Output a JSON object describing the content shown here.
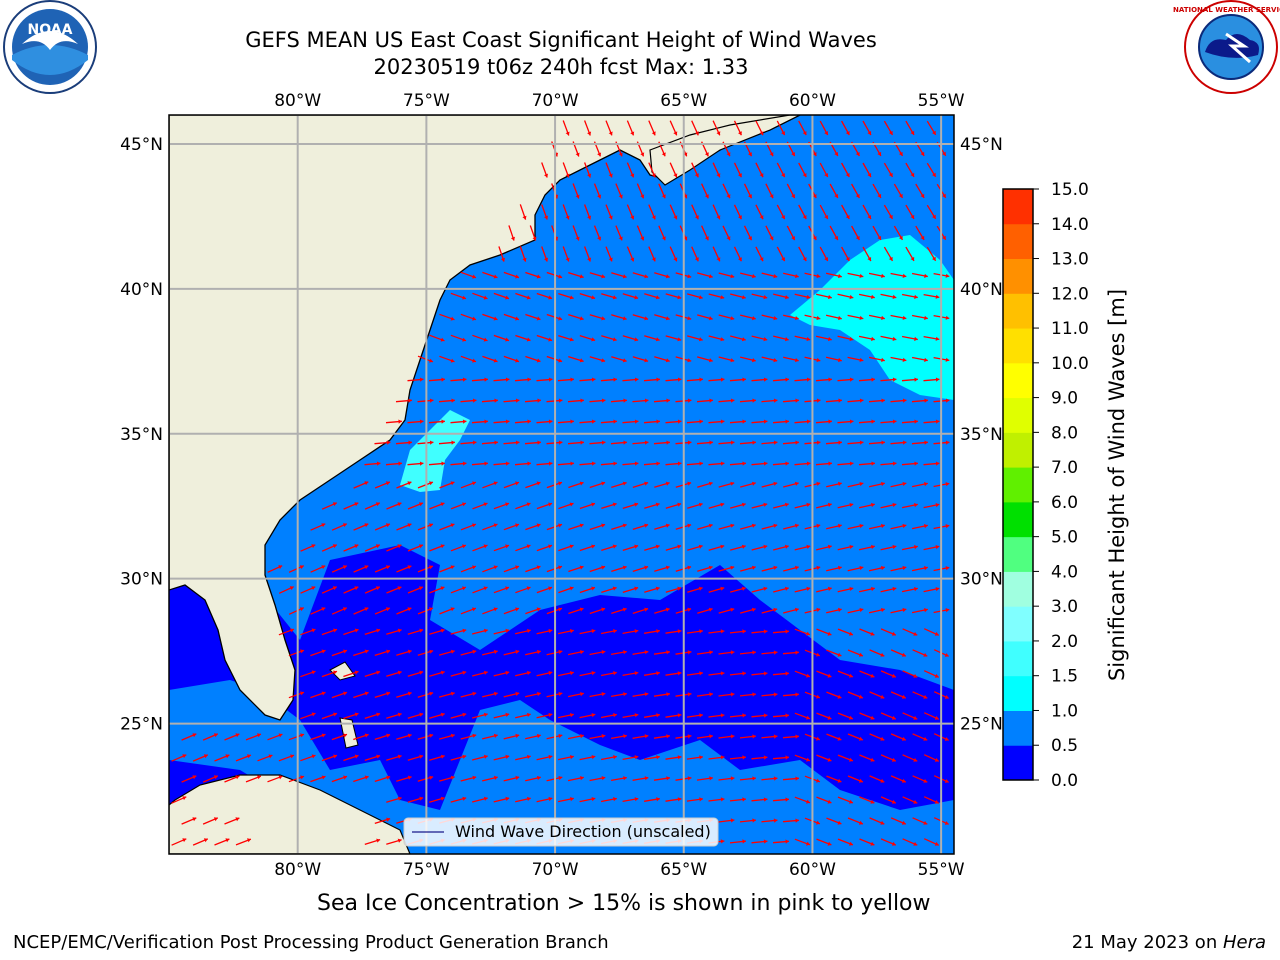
{
  "title": {
    "line1": "GEFS MEAN US East Coast Significant Height of Wind Waves",
    "line2": "20230519 t06z 240h fcst   Max: 1.33"
  },
  "subtitle": "Sea Ice Concentration > 15% is shown in pink to yellow",
  "footer": {
    "left": "NCEP/EMC/Verification Post Processing Product Generation Branch",
    "right_prefix": "21 May 2023 on ",
    "right_machine": "Hera"
  },
  "legend": {
    "label": "Wind Wave Direction (unscaled)"
  },
  "logos": {
    "left": "NOAA",
    "right": "NATIONAL WEATHER SERVICE"
  },
  "map": {
    "lon_ticks": [
      "80°W",
      "75°W",
      "70°W",
      "65°W",
      "60°W",
      "55°W"
    ],
    "lat_ticks": [
      "45°N",
      "40°N",
      "35°N",
      "30°N",
      "25°N"
    ],
    "lon_range": [
      -85,
      -54.5
    ],
    "lat_range": [
      20.5,
      46
    ],
    "colors": {
      "land": "#efefdc",
      "wave_low": "#0000ff",
      "wave_mid": "#0080ff",
      "wave_high": "#00ffff",
      "arrow": "#ff0000",
      "grid": "#b0b0b0"
    }
  },
  "colorbar": {
    "label": "Significant Height of Wind Waves [m]",
    "ticks": [
      "0.0",
      "0.5",
      "1.0",
      "1.5",
      "2.0",
      "3.0",
      "4.0",
      "5.0",
      "6.0",
      "7.0",
      "8.0",
      "9.0",
      "10.0",
      "11.0",
      "12.0",
      "13.0",
      "14.0",
      "15.0"
    ],
    "colors": [
      "#0000ff",
      "#0080ff",
      "#00ffff",
      "#40ffff",
      "#80ffff",
      "#a0ffe0",
      "#50ff80",
      "#00e000",
      "#60f000",
      "#c0f000",
      "#e0ff00",
      "#ffff00",
      "#ffe000",
      "#ffc000",
      "#ff9000",
      "#ff6000",
      "#ff3000",
      "#ff0000"
    ]
  }
}
